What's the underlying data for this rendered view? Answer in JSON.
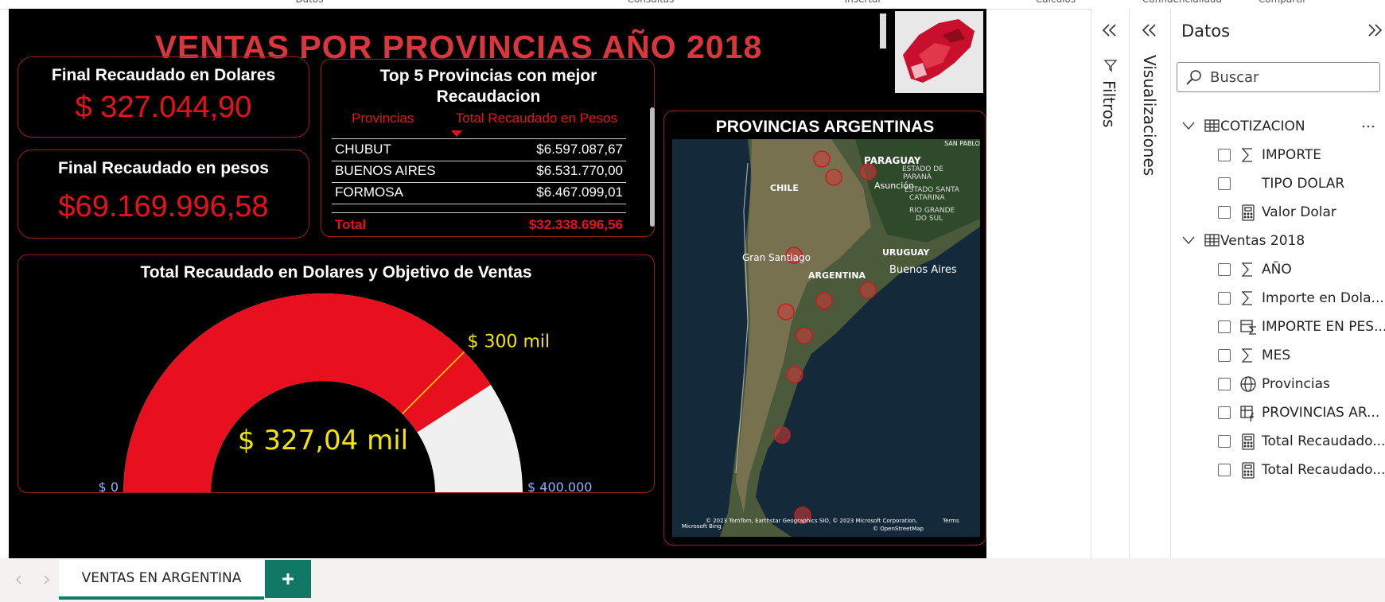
{
  "ribbon": {
    "groups": [
      "Datos",
      "Consultas",
      "Insertar",
      "Cálculos",
      "Confidencialidad",
      "Compartir"
    ]
  },
  "report": {
    "title": "VENTAS POR PROVINCIAS AÑO 2018",
    "card_dollars": {
      "title": "Final Recaudado en Dolares",
      "value": "$ 327.044,90"
    },
    "card_pesos": {
      "title": "Final Recaudado en pesos",
      "value": "$69.169.996,58"
    },
    "table": {
      "title": "Top 5 Provincias con mejor Recaudacion",
      "columns": [
        "Provincias",
        "Total Recaudado en Pesos"
      ],
      "rows": [
        [
          "CHUBUT",
          "$6.597.087,67"
        ],
        [
          "BUENOS AIRES",
          "$6.531.770,00"
        ],
        [
          "FORMOSA",
          "$6.467.099,01"
        ]
      ],
      "total": [
        "Total",
        "$32.338.696,56"
      ]
    },
    "gauge": {
      "title": "Total Recaudado en Dolares y Objetivo de Ventas",
      "min": 0,
      "max": 400000,
      "value": 327044.9,
      "target": 300000,
      "min_label": "$ 0",
      "max_label": "$ 400.000",
      "value_label": "$ 327,04 mil",
      "target_label": "$ 300 mil",
      "value_color": "#e8101f",
      "track_color": "#f0f0f0",
      "target_color": "#f2e600"
    },
    "map": {
      "title": "PROVINCIAS ARGENTINAS",
      "labels": [
        "SAN PABLO",
        "PARAGUAY",
        "ESTADO DE",
        "PARANÁ",
        "Asunción",
        "CHILE",
        "ESTADO SANTA",
        "CATARINA",
        "RIO GRANDE",
        "DO SUL",
        "Gran Santiago",
        "URUGUAY",
        "ARGENTINA",
        "Buenos Aires"
      ],
      "attribution": [
        "© 2023 TomTom, Earthstar Geographics SIO, © 2023 Microsoft Corporation,",
        "Terms",
        "© OpenStreetMap",
        "Microsoft Bing"
      ]
    }
  },
  "panes": {
    "filters": "Filtros",
    "visualizations": "Visualizaciones"
  },
  "data_pane": {
    "title": "Datos",
    "search": "Buscar",
    "tables": [
      {
        "name": "COTIZACION",
        "fields": [
          {
            "name": "IMPORTE",
            "icon": "sum"
          },
          {
            "name": "TIPO DOLAR",
            "icon": "none"
          },
          {
            "name": "Valor Dolar",
            "icon": "calc"
          }
        ]
      },
      {
        "name": "Ventas 2018",
        "fields": [
          {
            "name": "AÑO",
            "icon": "sum"
          },
          {
            "name": "Importe en Dola...",
            "icon": "sum"
          },
          {
            "name": "IMPORTE EN PES...",
            "icon": "table-sum"
          },
          {
            "name": "MES",
            "icon": "sum"
          },
          {
            "name": "Provincias",
            "icon": "globe"
          },
          {
            "name": "PROVINCIAS AR...",
            "icon": "table-fx"
          },
          {
            "name": "Total Recaudado...",
            "icon": "calc"
          },
          {
            "name": "Total Recaudado...",
            "icon": "calc"
          }
        ]
      }
    ]
  },
  "tabs": {
    "pages": [
      "VENTAS EN ARGENTINA"
    ]
  }
}
